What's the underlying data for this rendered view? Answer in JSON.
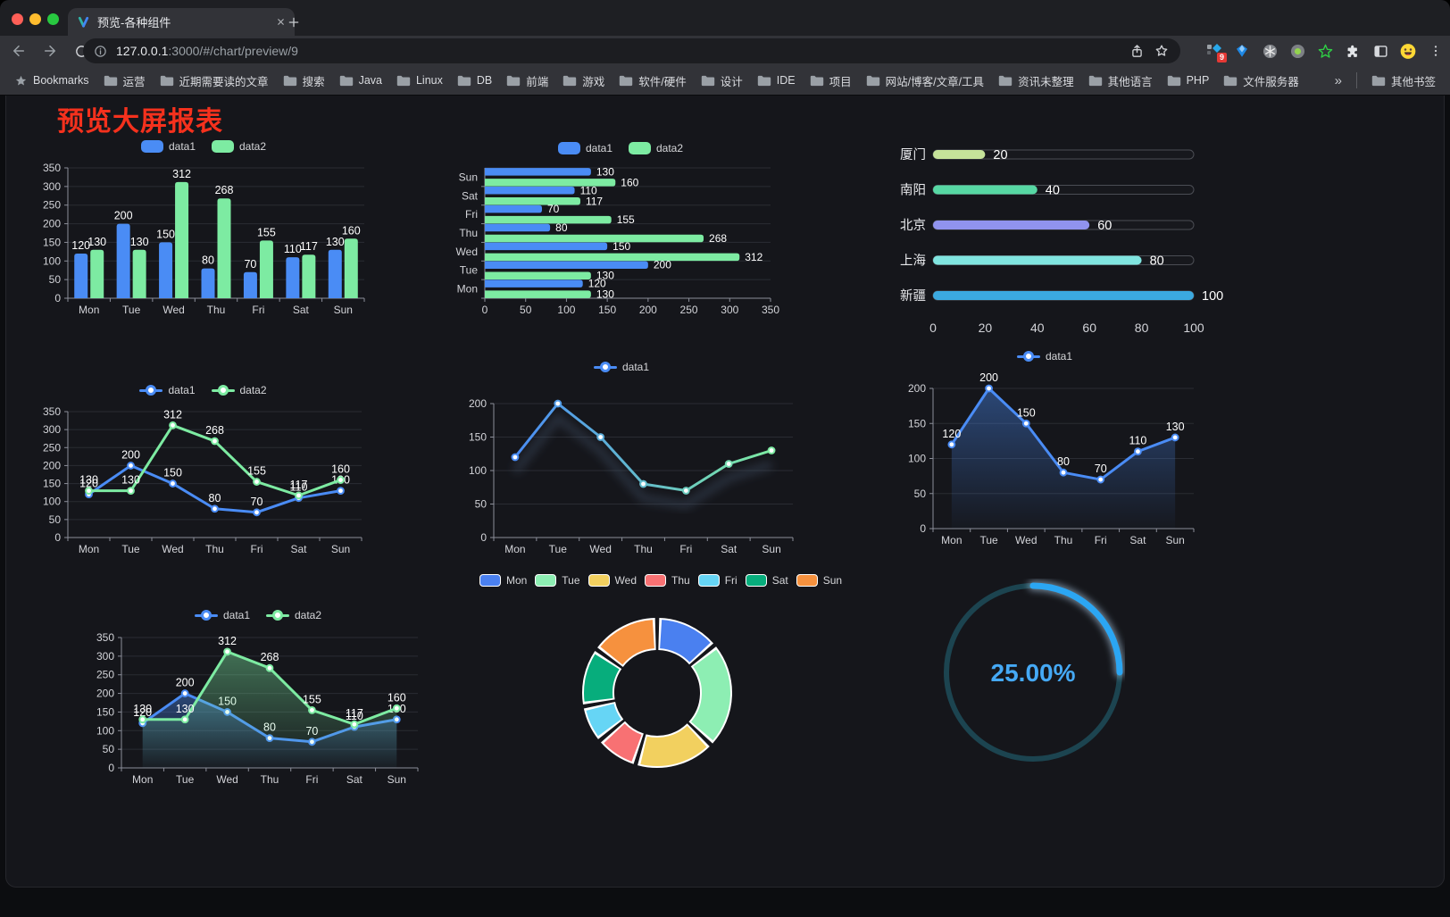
{
  "browser": {
    "tab": {
      "title": "预览-各种组件"
    },
    "url": {
      "host": "127.0.0.1",
      "rest": ":3000/#/chart/preview/9"
    },
    "bookmarks_bar": {
      "bookmarks_label": "Bookmarks",
      "folders": [
        "运营",
        "近期需要读的文章",
        "搜索",
        "Java",
        "Linux",
        "DB",
        "前端",
        "游戏",
        "软件/硬件",
        "设计",
        "IDE",
        "项目",
        "网站/博客/文章/工具",
        "资讯未整理",
        "其他语言",
        "PHP",
        "文件服务器"
      ],
      "overflow": "»",
      "other_bookmarks": "其他书签"
    },
    "extensions_badge": "9"
  },
  "page": {
    "title": "预览大屏报表",
    "title_color": "#f5311d",
    "background": "#15161b"
  },
  "palette": {
    "blue": "#4a8cf5",
    "green": "#7deba2",
    "axis": "#8b8e99",
    "grid": "#2a2c33",
    "tick_text": "#d3d4d9",
    "value_label": "#ffffff"
  },
  "chart_data": [
    {
      "id": "bar-vertical",
      "type": "bar",
      "legend_position": "top",
      "categories": [
        "Mon",
        "Tue",
        "Wed",
        "Thu",
        "Fri",
        "Sat",
        "Sun"
      ],
      "series": [
        {
          "name": "data1",
          "color": "#4a8cf5",
          "values": [
            120,
            200,
            150,
            80,
            70,
            110,
            130
          ]
        },
        {
          "name": "data2",
          "color": "#7deba2",
          "values": [
            130,
            130,
            312,
            268,
            155,
            117,
            160
          ]
        }
      ],
      "ylim": [
        0,
        350
      ],
      "yticks": [
        0,
        50,
        100,
        150,
        200,
        250,
        300,
        350
      ],
      "labels": true
    },
    {
      "id": "bar-horizontal",
      "type": "bar-horizontal",
      "legend_position": "top",
      "categories": [
        "Mon",
        "Tue",
        "Wed",
        "Thu",
        "Fri",
        "Sat",
        "Sun"
      ],
      "category_order": "bottom-to-top",
      "series": [
        {
          "name": "data1",
          "color": "#4a8cf5",
          "values": [
            120,
            200,
            150,
            80,
            70,
            110,
            130
          ]
        },
        {
          "name": "data2",
          "color": "#7deba2",
          "values": [
            130,
            130,
            312,
            268,
            155,
            117,
            160
          ]
        }
      ],
      "xlim": [
        0,
        350
      ],
      "xticks": [
        0,
        50,
        100,
        150,
        200,
        250,
        300,
        350
      ],
      "labels": true
    },
    {
      "id": "progress-bars",
      "type": "progress",
      "max": 100,
      "ticks": [
        0,
        20,
        40,
        60,
        80,
        100
      ],
      "items": [
        {
          "label": "厦门",
          "value": 20,
          "color": "#c6e39a"
        },
        {
          "label": "南阳",
          "value": 40,
          "color": "#57d8a4"
        },
        {
          "label": "北京",
          "value": 60,
          "color": "#9093ee"
        },
        {
          "label": "上海",
          "value": 80,
          "color": "#80e5e0"
        },
        {
          "label": "新疆",
          "value": 100,
          "color": "#3ba9e0"
        }
      ]
    },
    {
      "id": "line-basic",
      "type": "line",
      "legend_position": "top",
      "categories": [
        "Mon",
        "Tue",
        "Wed",
        "Thu",
        "Fri",
        "Sat",
        "Sun"
      ],
      "series": [
        {
          "name": "data1",
          "color": "#4a8cf5",
          "values": [
            120,
            200,
            150,
            80,
            70,
            110,
            130
          ]
        },
        {
          "name": "data2",
          "color": "#7deba2",
          "values": [
            130,
            130,
            312,
            268,
            155,
            117,
            160
          ]
        }
      ],
      "ylim": [
        0,
        350
      ],
      "yticks": [
        0,
        50,
        100,
        150,
        200,
        250,
        300,
        350
      ],
      "labels": true
    },
    {
      "id": "line-gradient",
      "type": "line",
      "legend_position": "top",
      "categories": [
        "Mon",
        "Tue",
        "Wed",
        "Thu",
        "Fri",
        "Sat",
        "Sun"
      ],
      "series": [
        {
          "name": "data1",
          "color": "#4a8cf5",
          "gradient_to": "#7deba2",
          "values": [
            120,
            200,
            150,
            80,
            70,
            110,
            130
          ]
        }
      ],
      "ylim": [
        0,
        200
      ],
      "yticks": [
        0,
        50,
        100,
        150,
        200
      ],
      "labels": false,
      "shadow": true
    },
    {
      "id": "line-area-single",
      "type": "line",
      "legend_position": "top",
      "categories": [
        "Mon",
        "Tue",
        "Wed",
        "Thu",
        "Fri",
        "Sat",
        "Sun"
      ],
      "series": [
        {
          "name": "data1",
          "color": "#4a8cf5",
          "area": true,
          "values": [
            120,
            200,
            150,
            80,
            70,
            110,
            130
          ]
        }
      ],
      "ylim": [
        0,
        200
      ],
      "yticks": [
        0,
        50,
        100,
        150,
        200
      ],
      "labels": true
    },
    {
      "id": "line-area-double",
      "type": "line",
      "legend_position": "top",
      "categories": [
        "Mon",
        "Tue",
        "Wed",
        "Thu",
        "Fri",
        "Sat",
        "Sun"
      ],
      "series": [
        {
          "name": "data1",
          "color": "#4a8cf5",
          "area": true,
          "values": [
            120,
            200,
            150,
            80,
            70,
            110,
            130
          ]
        },
        {
          "name": "data2",
          "color": "#7deba2",
          "area": true,
          "values": [
            130,
            130,
            312,
            268,
            155,
            117,
            160
          ]
        }
      ],
      "ylim": [
        0,
        350
      ],
      "yticks": [
        0,
        50,
        100,
        150,
        200,
        250,
        300,
        350
      ],
      "labels": true
    },
    {
      "id": "donut",
      "type": "pie",
      "categories": [
        "Mon",
        "Tue",
        "Wed",
        "Thu",
        "Fri",
        "Sat",
        "Sun"
      ],
      "values": [
        120,
        200,
        150,
        80,
        70,
        110,
        130
      ],
      "colors": [
        "#4a80f0",
        "#8deeb3",
        "#f2d05f",
        "#f87173",
        "#66d5f5",
        "#07ad7c",
        "#f6913e"
      ],
      "legend_position": "top"
    },
    {
      "id": "gauge",
      "type": "gauge",
      "percent": 25,
      "text": "25.00%",
      "color": "#2ba6f3",
      "track": "#1c4450",
      "text_color": "#45a9f5"
    }
  ]
}
